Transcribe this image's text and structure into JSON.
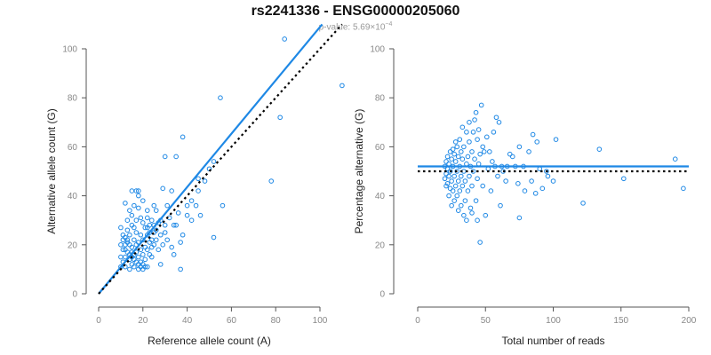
{
  "title": "rs2241336 - ENSG00000205060",
  "subtitle": {
    "prefix": "p-value: 5.69×10",
    "exponent": "−4"
  },
  "colors": {
    "points": "#1e88e5",
    "fit": "#1e88e5",
    "reference": "#000000",
    "axis": "#555555",
    "ticks": "#888888"
  },
  "chart_data": [
    {
      "type": "scatter",
      "title": "",
      "xlabel": "Reference allele count (A)",
      "ylabel": "Alternative allele count (G)",
      "xlim": [
        0,
        100
      ],
      "ylim": [
        0,
        100
      ],
      "xticks": [
        0,
        20,
        40,
        60,
        80,
        100
      ],
      "yticks": [
        0,
        20,
        40,
        60,
        80,
        100
      ],
      "fit_line": {
        "x": [
          0,
          101
        ],
        "y": [
          0,
          110
        ]
      },
      "reference_line": {
        "x": [
          0,
          110
        ],
        "y": [
          0,
          110
        ]
      },
      "points": [
        [
          84,
          104
        ],
        [
          110,
          85
        ],
        [
          55,
          80
        ],
        [
          82,
          72
        ],
        [
          38,
          64
        ],
        [
          78,
          46
        ],
        [
          56,
          36
        ],
        [
          52,
          23
        ],
        [
          37,
          21
        ],
        [
          37,
          10
        ],
        [
          34,
          16
        ],
        [
          30,
          56
        ],
        [
          35,
          56
        ],
        [
          45,
          47
        ],
        [
          48,
          46
        ],
        [
          50,
          51
        ],
        [
          52,
          54
        ],
        [
          45,
          42
        ],
        [
          42,
          38
        ],
        [
          44,
          36
        ],
        [
          40,
          32
        ],
        [
          33,
          42
        ],
        [
          29,
          43
        ],
        [
          31,
          36
        ],
        [
          34,
          28
        ],
        [
          30,
          28
        ],
        [
          28,
          30
        ],
        [
          26,
          34
        ],
        [
          25,
          36
        ],
        [
          26,
          26
        ],
        [
          25,
          28
        ],
        [
          24,
          30
        ],
        [
          22,
          34
        ],
        [
          22,
          31
        ],
        [
          20,
          38
        ],
        [
          18,
          42
        ],
        [
          18,
          40
        ],
        [
          17,
          42
        ],
        [
          15,
          42
        ],
        [
          12,
          37
        ],
        [
          10,
          27
        ],
        [
          11,
          24
        ],
        [
          10,
          20
        ],
        [
          11,
          18
        ],
        [
          10,
          15
        ],
        [
          11,
          13
        ],
        [
          10,
          11
        ],
        [
          12,
          11
        ],
        [
          12,
          15
        ],
        [
          12,
          18
        ],
        [
          13,
          21
        ],
        [
          13,
          22
        ],
        [
          14,
          14
        ],
        [
          14,
          20
        ],
        [
          15,
          17
        ],
        [
          14,
          10
        ],
        [
          15,
          12
        ],
        [
          15,
          19
        ],
        [
          16,
          14
        ],
        [
          16,
          11
        ],
        [
          16,
          22
        ],
        [
          17,
          25
        ],
        [
          17,
          20
        ],
        [
          17,
          17
        ],
        [
          18,
          10
        ],
        [
          18,
          15
        ],
        [
          18,
          21
        ],
        [
          19,
          24
        ],
        [
          19,
          18
        ],
        [
          19,
          13
        ],
        [
          20,
          10
        ],
        [
          20,
          16
        ],
        [
          20,
          22
        ],
        [
          21,
          27
        ],
        [
          21,
          19
        ],
        [
          21,
          14
        ],
        [
          22,
          18
        ],
        [
          22,
          11
        ],
        [
          22,
          24
        ],
        [
          23,
          21
        ],
        [
          23,
          16
        ],
        [
          23,
          28
        ],
        [
          24,
          22
        ],
        [
          24,
          15
        ],
        [
          24,
          19
        ],
        [
          25,
          25
        ],
        [
          25,
          20
        ],
        [
          26,
          22
        ],
        [
          27,
          29
        ],
        [
          27,
          18
        ],
        [
          28,
          24
        ],
        [
          28,
          12
        ],
        [
          29,
          20
        ],
        [
          30,
          25
        ],
        [
          31,
          22
        ],
        [
          32,
          31
        ],
        [
          33,
          19
        ],
        [
          35,
          28
        ],
        [
          36,
          33
        ],
        [
          38,
          24
        ],
        [
          40,
          36
        ],
        [
          42,
          30
        ],
        [
          46,
          32
        ],
        [
          15,
          28
        ],
        [
          13,
          26
        ],
        [
          14,
          24
        ],
        [
          12,
          23
        ],
        [
          12,
          20
        ],
        [
          13,
          17
        ],
        [
          14,
          16
        ],
        [
          15,
          15
        ],
        [
          16,
          16
        ],
        [
          17,
          13
        ],
        [
          18,
          12
        ],
        [
          19,
          11
        ],
        [
          20,
          12
        ],
        [
          21,
          11
        ],
        [
          11,
          22
        ],
        [
          16,
          27
        ],
        [
          17,
          30
        ],
        [
          19,
          31
        ],
        [
          20,
          29
        ],
        [
          22,
          27
        ],
        [
          23,
          25
        ],
        [
          15,
          32
        ],
        [
          16,
          36
        ],
        [
          14,
          34
        ],
        [
          18,
          35
        ],
        [
          13,
          30
        ]
      ]
    },
    {
      "type": "scatter",
      "title": "",
      "xlabel": "Total number of reads",
      "ylabel": "Percentage alternative (G)",
      "xlim": [
        0,
        200
      ],
      "ylim": [
        0,
        100
      ],
      "xticks": [
        0,
        50,
        100,
        150,
        200
      ],
      "yticks": [
        0,
        20,
        40,
        60,
        80,
        100
      ],
      "fit_line": {
        "x": [
          0,
          200
        ],
        "y": [
          52,
          52
        ]
      },
      "reference_line": {
        "x": [
          0,
          200
        ],
        "y": [
          50,
          50
        ]
      },
      "points": [
        [
          47,
          77
        ],
        [
          46,
          21
        ],
        [
          50,
          32
        ],
        [
          42,
          71
        ],
        [
          43,
          74
        ],
        [
          58,
          72
        ],
        [
          60,
          70
        ],
        [
          70,
          56
        ],
        [
          75,
          60
        ],
        [
          85,
          65
        ],
        [
          88,
          62
        ],
        [
          82,
          58
        ],
        [
          90,
          51
        ],
        [
          96,
          48
        ],
        [
          100,
          46
        ],
        [
          102,
          63
        ],
        [
          122,
          37
        ],
        [
          134,
          59
        ],
        [
          152,
          47
        ],
        [
          190,
          55
        ],
        [
          196,
          43
        ],
        [
          92,
          43
        ],
        [
          87,
          41
        ],
        [
          79,
          42
        ],
        [
          75,
          31
        ],
        [
          65,
          46
        ],
        [
          63,
          50
        ],
        [
          61,
          36
        ],
        [
          55,
          54
        ],
        [
          54,
          42
        ],
        [
          52,
          51
        ],
        [
          48,
          60
        ],
        [
          48,
          44
        ],
        [
          46,
          57
        ],
        [
          45,
          53
        ],
        [
          44,
          47
        ],
        [
          44,
          63
        ],
        [
          43,
          38
        ],
        [
          42,
          55
        ],
        [
          41,
          50
        ],
        [
          40,
          44
        ],
        [
          40,
          58
        ],
        [
          39,
          52
        ],
        [
          39,
          35
        ],
        [
          38,
          62
        ],
        [
          38,
          48
        ],
        [
          37,
          56
        ],
        [
          37,
          42
        ],
        [
          36,
          66
        ],
        [
          36,
          53
        ],
        [
          35,
          46
        ],
        [
          35,
          38
        ],
        [
          34,
          60
        ],
        [
          34,
          50
        ],
        [
          34,
          32
        ],
        [
          33,
          55
        ],
        [
          33,
          44
        ],
        [
          33,
          68
        ],
        [
          32,
          48
        ],
        [
          32,
          58
        ],
        [
          32,
          36
        ],
        [
          31,
          52
        ],
        [
          31,
          42
        ],
        [
          31,
          63
        ],
        [
          30,
          46
        ],
        [
          30,
          56
        ],
        [
          30,
          34
        ],
        [
          29,
          50
        ],
        [
          29,
          60
        ],
        [
          29,
          40
        ],
        [
          28,
          54
        ],
        [
          28,
          44
        ],
        [
          28,
          62
        ],
        [
          27,
          48
        ],
        [
          27,
          38
        ],
        [
          27,
          57
        ],
        [
          26,
          52
        ],
        [
          26,
          42
        ],
        [
          26,
          59
        ],
        [
          25,
          46
        ],
        [
          25,
          55
        ],
        [
          25,
          36
        ],
        [
          24,
          50
        ],
        [
          24,
          43
        ],
        [
          24,
          58
        ],
        [
          23,
          48
        ],
        [
          23,
          53
        ],
        [
          23,
          40
        ],
        [
          22,
          45
        ],
        [
          22,
          56
        ],
        [
          22,
          51
        ],
        [
          21,
          49
        ],
        [
          21,
          44
        ],
        [
          21,
          54
        ],
        [
          20,
          47
        ],
        [
          20,
          52
        ],
        [
          56,
          66
        ],
        [
          57,
          52
        ],
        [
          59,
          48
        ],
        [
          62,
          52
        ],
        [
          66,
          52
        ],
        [
          68,
          57
        ],
        [
          72,
          52
        ],
        [
          74,
          45
        ],
        [
          78,
          52
        ],
        [
          84,
          46
        ],
        [
          95,
          50
        ],
        [
          36,
          30
        ],
        [
          40,
          33
        ],
        [
          44,
          30
        ],
        [
          49,
          58
        ],
        [
          51,
          64
        ],
        [
          53,
          58
        ],
        [
          45,
          67
        ],
        [
          41,
          66
        ],
        [
          38,
          70
        ]
      ]
    }
  ]
}
